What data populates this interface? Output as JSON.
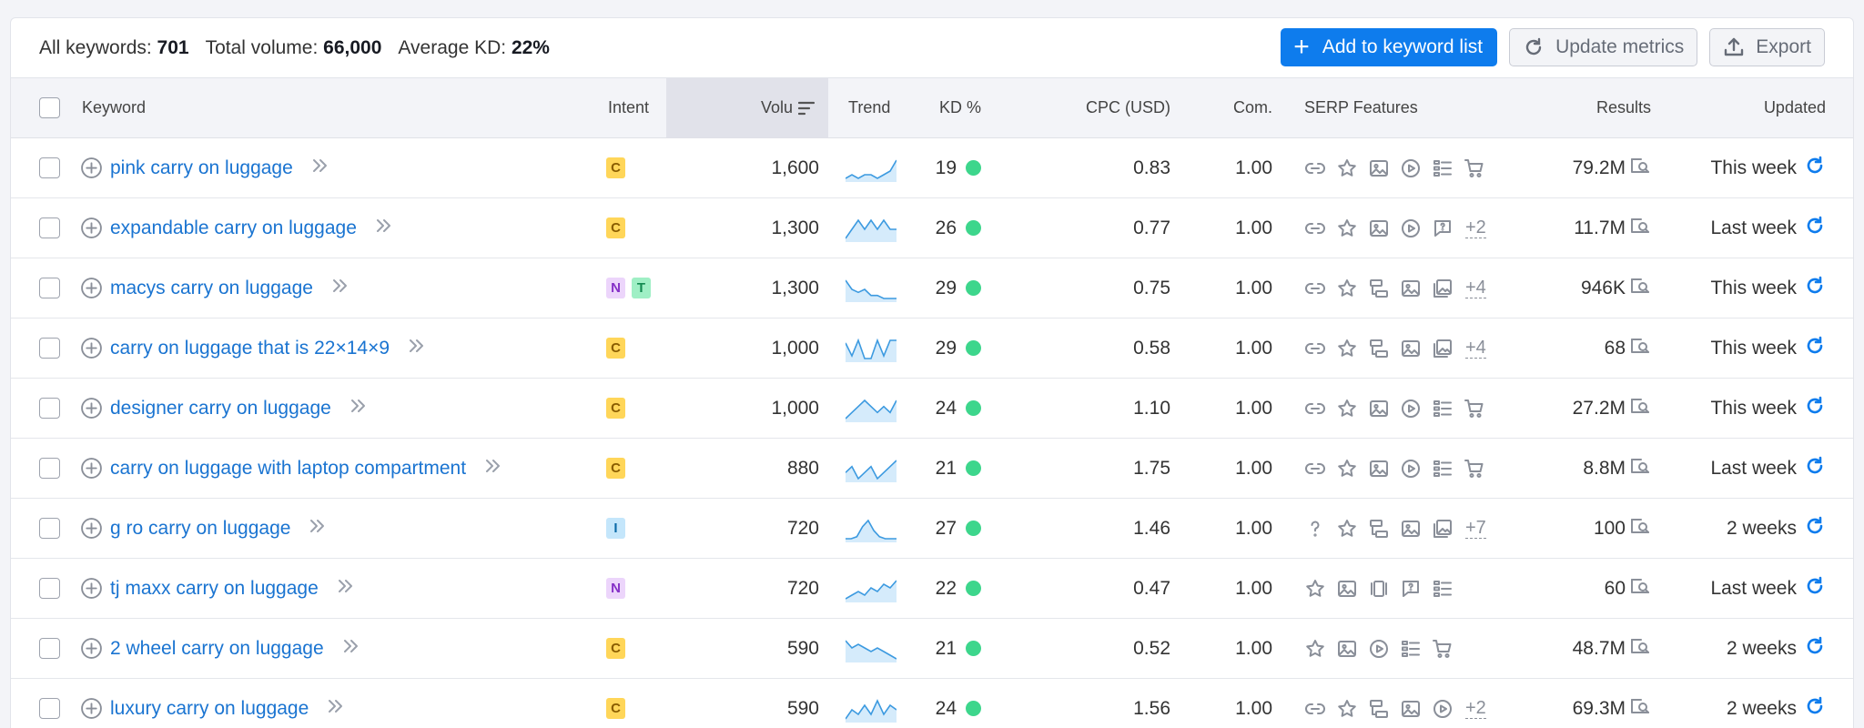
{
  "summary": {
    "all_keywords_label": "All keywords:",
    "all_keywords_value": "701",
    "total_volume_label": "Total volume:",
    "total_volume_value": "66,000",
    "avg_kd_label": "Average KD:",
    "avg_kd_value": "22%"
  },
  "actions": {
    "add_label": "Add to keyword list",
    "update_label": "Update metrics",
    "export_label": "Export"
  },
  "columns": {
    "keyword": "Keyword",
    "intent": "Intent",
    "volume": "Volu",
    "trend": "Trend",
    "kd": "KD %",
    "cpc": "CPC (USD)",
    "com": "Com.",
    "serp": "SERP Features",
    "results": "Results",
    "updated": "Updated"
  },
  "colors": {
    "accent": "#0e7ced",
    "link": "#1a74d1",
    "kd_dot": "#3dd68c",
    "header_bg": "#f3f4f8"
  },
  "rows": [
    {
      "keyword": "pink carry on luggage",
      "intents": [
        "C"
      ],
      "volume": "1,600",
      "trend": [
        2,
        3,
        2,
        3,
        3,
        2,
        3,
        4,
        7
      ],
      "kd": "19",
      "cpc": "0.83",
      "com": "1.00",
      "serp": [
        "link-icon",
        "star-icon",
        "image-icon",
        "video-icon",
        "list-icon",
        "cart-icon"
      ],
      "serp_more": "",
      "results": "79.2M",
      "updated": "This week"
    },
    {
      "keyword": "expandable carry on luggage",
      "intents": [
        "C"
      ],
      "volume": "1,300",
      "trend": [
        4,
        5,
        6,
        5,
        6,
        5,
        6,
        5,
        5
      ],
      "kd": "26",
      "cpc": "0.77",
      "com": "1.00",
      "serp": [
        "link-icon",
        "star-icon",
        "image-icon",
        "video-icon",
        "faq-icon"
      ],
      "serp_more": "+2",
      "results": "11.7M",
      "updated": "Last week"
    },
    {
      "keyword": "macys carry on luggage",
      "intents": [
        "N",
        "T"
      ],
      "volume": "1,300",
      "trend": [
        8,
        5,
        4,
        5,
        3,
        3,
        2,
        2,
        2
      ],
      "kd": "29",
      "cpc": "0.75",
      "com": "1.00",
      "serp": [
        "link-icon",
        "star-icon",
        "sitelinks-icon",
        "image-icon",
        "image-pack-icon"
      ],
      "serp_more": "+4",
      "results": "946K",
      "updated": "This week"
    },
    {
      "keyword": "carry on luggage that is 22×14×9",
      "intents": [
        "C"
      ],
      "volume": "1,000",
      "trend": [
        7,
        2,
        8,
        1,
        1,
        8,
        2,
        8,
        8
      ],
      "kd": "29",
      "cpc": "0.58",
      "com": "1.00",
      "serp": [
        "link-icon",
        "star-icon",
        "sitelinks-icon",
        "image-icon",
        "image-pack-icon"
      ],
      "serp_more": "+4",
      "results": "68",
      "updated": "This week"
    },
    {
      "keyword": "designer carry on luggage",
      "intents": [
        "C"
      ],
      "volume": "1,000",
      "trend": [
        3,
        4,
        5,
        6,
        5,
        4,
        5,
        4,
        6
      ],
      "kd": "24",
      "cpc": "1.10",
      "com": "1.00",
      "serp": [
        "link-icon",
        "star-icon",
        "image-icon",
        "video-icon",
        "list-icon",
        "cart-icon"
      ],
      "serp_more": "",
      "results": "27.2M",
      "updated": "This week"
    },
    {
      "keyword": "carry on luggage with laptop compartment",
      "intents": [
        "C"
      ],
      "volume": "880",
      "trend": [
        5,
        6,
        4,
        5,
        6,
        4,
        5,
        6,
        7
      ],
      "kd": "21",
      "cpc": "1.75",
      "com": "1.00",
      "serp": [
        "link-icon",
        "star-icon",
        "image-icon",
        "video-icon",
        "list-icon",
        "cart-icon"
      ],
      "serp_more": "",
      "results": "8.8M",
      "updated": "Last week"
    },
    {
      "keyword": "g ro carry on luggage",
      "intents": [
        "I"
      ],
      "volume": "720",
      "trend": [
        0,
        0,
        1,
        6,
        9,
        4,
        1,
        0,
        0,
        0
      ],
      "kd": "27",
      "cpc": "1.46",
      "com": "1.00",
      "serp": [
        "question-icon",
        "star-icon",
        "sitelinks-icon",
        "image-icon",
        "image-pack-icon"
      ],
      "serp_more": "+7",
      "results": "100",
      "updated": "2 weeks"
    },
    {
      "keyword": "tj maxx carry on luggage",
      "intents": [
        "N"
      ],
      "volume": "720",
      "trend": [
        3,
        4,
        5,
        4,
        6,
        5,
        7,
        6,
        8
      ],
      "kd": "22",
      "cpc": "0.47",
      "com": "1.00",
      "serp": [
        "star-icon",
        "image-icon",
        "carousel-icon",
        "faq-icon",
        "list-icon"
      ],
      "serp_more": "",
      "results": "60",
      "updated": "Last week"
    },
    {
      "keyword": "2 wheel carry on luggage",
      "intents": [
        "C"
      ],
      "volume": "590",
      "trend": [
        8,
        6,
        7,
        6,
        5,
        6,
        5,
        4,
        3
      ],
      "kd": "21",
      "cpc": "0.52",
      "com": "1.00",
      "serp": [
        "star-icon",
        "image-icon",
        "video-icon",
        "list-icon",
        "cart-icon"
      ],
      "serp_more": "",
      "results": "48.7M",
      "updated": "2 weeks"
    },
    {
      "keyword": "luxury carry on luggage",
      "intents": [
        "C"
      ],
      "volume": "590",
      "trend": [
        3,
        5,
        4,
        6,
        4,
        7,
        4,
        6,
        5
      ],
      "kd": "24",
      "cpc": "1.56",
      "com": "1.00",
      "serp": [
        "link-icon",
        "star-icon",
        "sitelinks-icon",
        "image-icon",
        "video-icon"
      ],
      "serp_more": "+2",
      "results": "69.3M",
      "updated": "2 weeks"
    }
  ]
}
